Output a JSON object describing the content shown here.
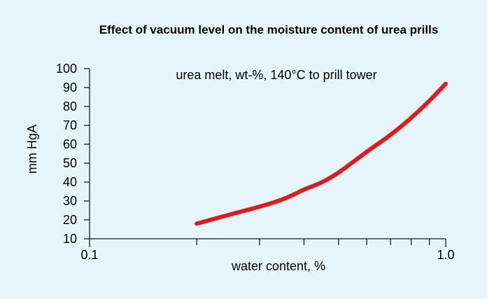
{
  "chart_data": {
    "type": "line",
    "title": "Effect of vacuum level on the moisture content of urea prills",
    "annotation": "urea melt, wt-%, 140°C to prill tower",
    "xlabel": "water content, %",
    "ylabel": "mm HgA",
    "x_scale": "log",
    "xlim": [
      0.1,
      1.0
    ],
    "ylim": [
      10,
      100
    ],
    "x_tick_labels": [
      {
        "value": 0.1,
        "label": "0.1"
      },
      {
        "value": 1.0,
        "label": "1.0"
      }
    ],
    "x_minor_ticks": [
      0.2,
      0.3,
      0.4,
      0.5,
      0.6,
      0.7,
      0.8,
      0.9
    ],
    "y_ticks": [
      10,
      20,
      30,
      40,
      50,
      60,
      70,
      80,
      90,
      100
    ],
    "grid": false,
    "colors": {
      "series": "#e01b1b",
      "background": "#e6f4fc",
      "axis": "#1a1a1a"
    },
    "series": [
      {
        "x": [
          0.2,
          0.25,
          0.3,
          0.35,
          0.4,
          0.45,
          0.5,
          0.6,
          0.7,
          0.8,
          0.9,
          1.0
        ],
        "y": [
          18,
          23,
          27,
          31,
          36,
          40,
          45,
          56,
          65,
          74,
          83,
          92
        ]
      }
    ]
  }
}
